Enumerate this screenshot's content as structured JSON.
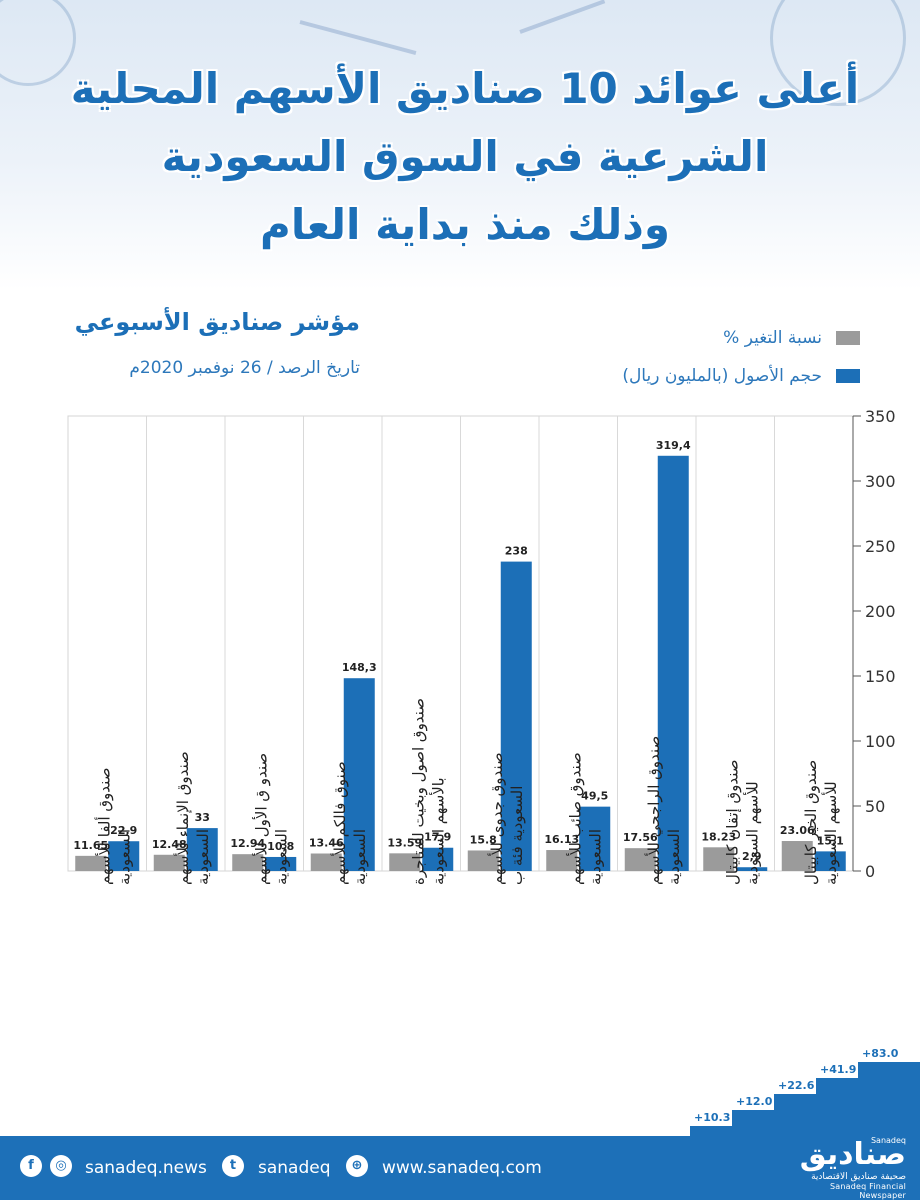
{
  "title_lines": [
    "أعلى عوائد 10 صناديق الأسهم المحلية",
    "الشرعية في السوق السعودية",
    "وذلك منذ بداية العام"
  ],
  "subtitle": "مؤشر صناديق الأسبوعي",
  "date_line": "تاريخ الرصد / 26 نوفمبر 2020م",
  "legend": [
    {
      "label": "نسبة التغير %",
      "color": "#9b9b9b"
    },
    {
      "label": "حجم الأصول (بالمليون ريال)",
      "color": "#1c6fb7"
    }
  ],
  "chart_data": {
    "type": "bar",
    "categories": [
      [
        "صندوق ألفا للأسهم",
        "السعودية"
      ],
      [
        "صندوق الإنماء للأسهم",
        "السعودية"
      ],
      [
        "صندو ق الأول للأسهم",
        "السعودية"
      ],
      [
        "صنوق فالكم للأسهم",
        "السعودية"
      ],
      [
        "صندوق اصول وبخيت للمتاجرة",
        "بالأسهم السعودية"
      ],
      [
        "صندوق جدوى للأسهم",
        "السعودية فئة ب"
      ],
      [
        "صندوق صائب للأسهم",
        "السعودية"
      ],
      [
        "صندوق الراجحي للأسهم",
        "السعودية"
      ],
      [
        "صندوق إتقان كابيتال",
        "للأسهم السعودية"
      ],
      [
        "صندوق الخير كابيتال",
        "للأسهم السعودية"
      ]
    ],
    "series": [
      {
        "name": "نسبة التغير %",
        "values": [
          11.65,
          12.48,
          12.94,
          13.46,
          13.59,
          15.8,
          16.13,
          17.56,
          18.23,
          23.06
        ],
        "labels": [
          "11.65",
          "12.48",
          "12.94",
          "13.46",
          "13.59",
          "15.8",
          "16.13",
          "17.56",
          "18.23",
          "23.06"
        ],
        "color": "#9b9b9b"
      },
      {
        "name": "حجم الأصول (بالمليون ريال)",
        "values": [
          22.9,
          33,
          10.8,
          148.3,
          17.9,
          238,
          49.5,
          319.4,
          2.9,
          15.1
        ],
        "labels": [
          "22,9",
          "33",
          "10,8",
          "148,3",
          "17,9",
          "238",
          "49,5",
          "319,4",
          "2,9",
          "15,1"
        ],
        "color": "#1c6fb7"
      }
    ],
    "ylim": [
      0,
      350
    ],
    "yticks": [
      0,
      50,
      100,
      150,
      200,
      250,
      300,
      350
    ],
    "axis_side": "right",
    "grid": "vertical separators"
  },
  "stairs": [
    "+10.3",
    "+12.0",
    "+22.6",
    "+41.9",
    "+83.0"
  ],
  "footer": {
    "social_handle": "sanadeq.news",
    "twitter_handle": "sanadeq",
    "website": "www.sanadeq.com",
    "brand_name": "صناديق",
    "brand_small": "Sanadeq",
    "brand_ar": "صحيفة صناديق الاقتصادية",
    "brand_en": "Sanadeq Financial Newspaper",
    "icons": [
      "facebook-icon",
      "instagram-icon",
      "twitter-icon",
      "globe-icon"
    ]
  }
}
